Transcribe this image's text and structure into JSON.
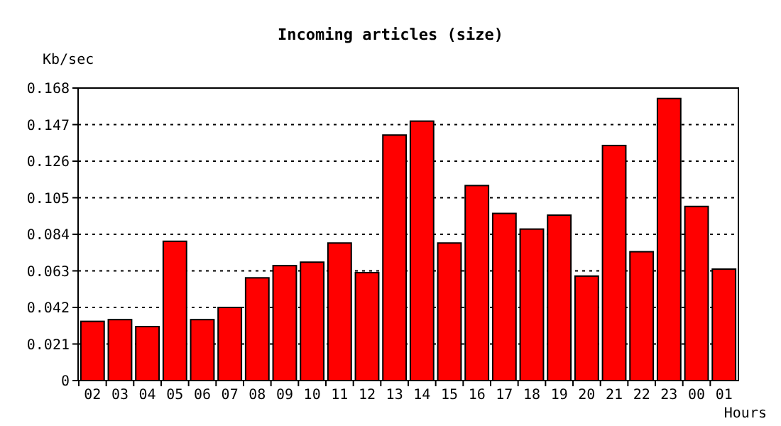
{
  "chart_data": {
    "type": "bar",
    "title": "Incoming articles (size)",
    "ylabel": "Kb/sec",
    "xlabel": "Hours",
    "categories": [
      "02",
      "03",
      "04",
      "05",
      "06",
      "07",
      "08",
      "09",
      "10",
      "11",
      "12",
      "13",
      "14",
      "15",
      "16",
      "17",
      "18",
      "19",
      "20",
      "21",
      "22",
      "23",
      "00",
      "01"
    ],
    "values": [
      0.034,
      0.035,
      0.031,
      0.08,
      0.035,
      0.042,
      0.059,
      0.066,
      0.068,
      0.079,
      0.062,
      0.141,
      0.149,
      0.079,
      0.112,
      0.096,
      0.087,
      0.095,
      0.06,
      0.135,
      0.074,
      0.162,
      0.1,
      0.064
    ],
    "color": "#ff0000",
    "ylim": [
      0,
      0.168
    ],
    "yticks": [
      0,
      0.021,
      0.042,
      0.063,
      0.084,
      0.105,
      0.126,
      0.147,
      0.168
    ],
    "grid": "y"
  }
}
